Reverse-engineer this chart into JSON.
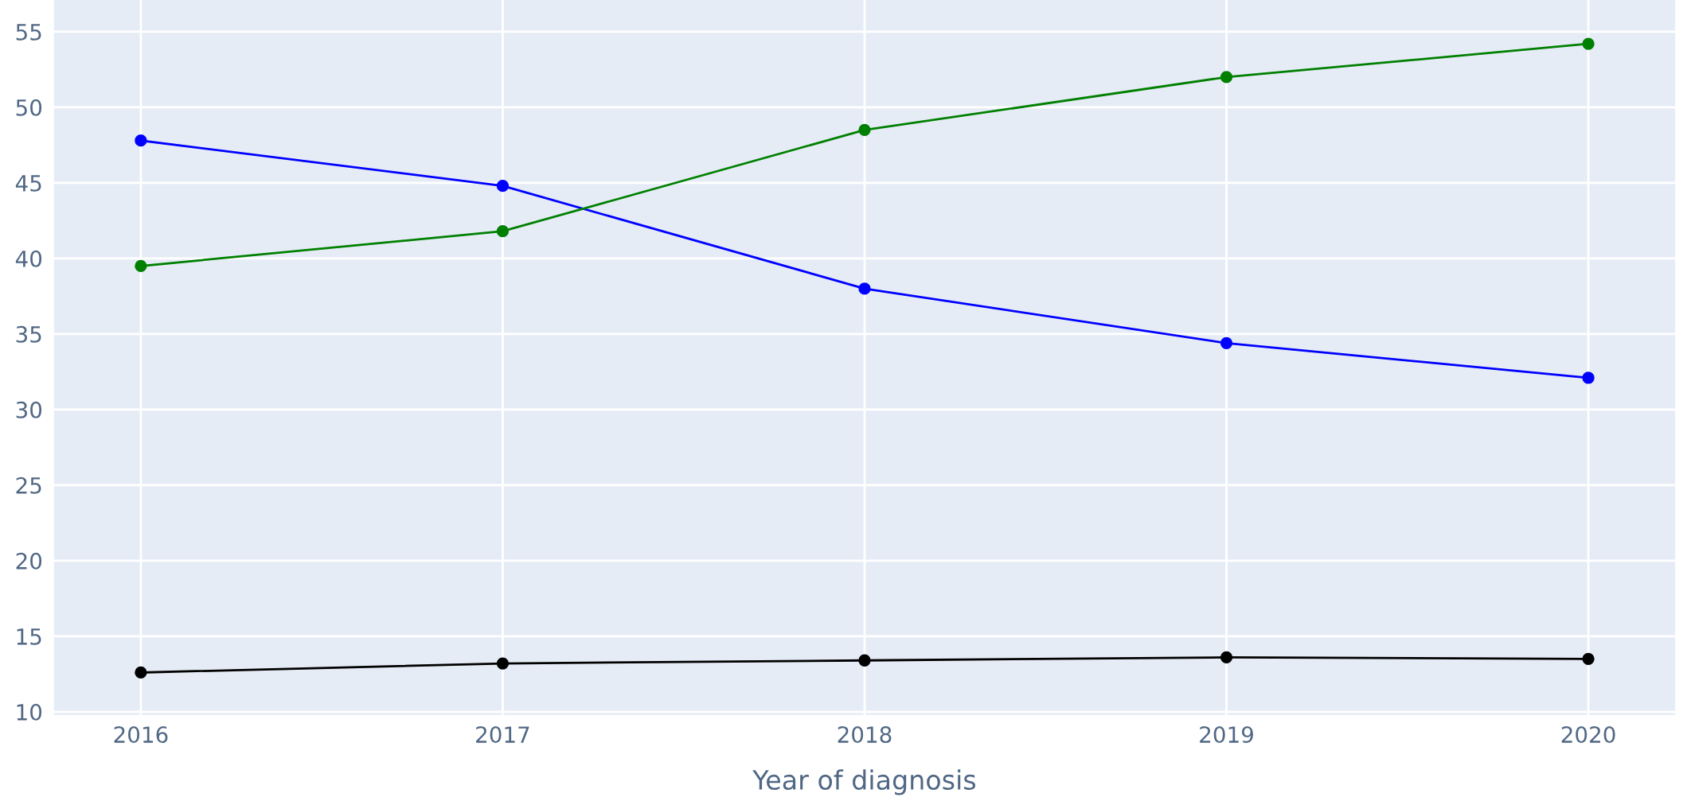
{
  "chart_data": {
    "type": "line",
    "xlabel": "Year of diagnosis",
    "x": [
      2016,
      2017,
      2018,
      2019,
      2020
    ],
    "series": [
      {
        "color": "#0000ff",
        "values": [
          47.8,
          44.8,
          38.0,
          34.4,
          32.1
        ]
      },
      {
        "color": "#008000",
        "values": [
          39.5,
          41.8,
          48.5,
          52.0,
          54.2
        ]
      },
      {
        "color": "#000000",
        "values": [
          12.6,
          13.2,
          13.4,
          13.6,
          13.5
        ]
      }
    ],
    "xlim": [
      2015.76,
      2020.24
    ],
    "xticks": [
      2016,
      2017,
      2018,
      2019,
      2020
    ],
    "ylim": [
      9.8,
      57.1
    ],
    "yticks": [
      10,
      15,
      20,
      25,
      30,
      35,
      40,
      45,
      50,
      55
    ],
    "grid": true,
    "legend": false,
    "marker": "circle",
    "line_style": "solid"
  }
}
